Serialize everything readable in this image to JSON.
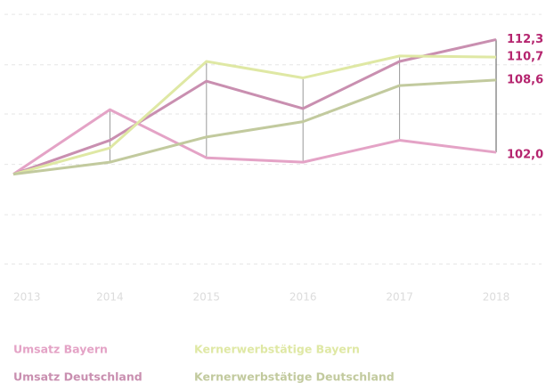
{
  "chart_data": {
    "type": "line",
    "categories": [
      "2013",
      "2014",
      "2015",
      "2016",
      "2017",
      "2018"
    ],
    "ylim": [
      90.7,
      115.1
    ],
    "yticks": [
      91.8,
      96.3,
      100.9,
      105.5,
      110,
      114.6
    ],
    "grid": true,
    "label_color": "#b5256f",
    "series": [
      {
        "name": "Umsatz Bayern",
        "color": "#e4a3c6",
        "values": [
          100,
          105.9,
          101.5,
          101.1,
          103.1,
          102.0
        ],
        "value_labels": [
          null,
          null,
          null,
          null,
          null,
          "102,0"
        ]
      },
      {
        "name": "Umsatz Deutschland",
        "color": "#c98fb0",
        "values": [
          100,
          103.1,
          108.5,
          106.0,
          110.3,
          112.3
        ],
        "value_labels": [
          null,
          null,
          null,
          null,
          null,
          "112,3"
        ]
      },
      {
        "name": "Kernerwerbstätige Bayern",
        "color": "#dfe8a4",
        "values": [
          100,
          102.4,
          110.3,
          108.8,
          110.8,
          110.7
        ],
        "value_labels": [
          null,
          null,
          null,
          null,
          null,
          "110,7"
        ]
      },
      {
        "name": "Kernerwerbstätige Deutschland",
        "color": "#c2ca9e",
        "values": [
          100,
          101.1,
          103.4,
          104.8,
          108.1,
          108.6
        ],
        "value_labels": [
          null,
          null,
          null,
          null,
          null,
          "108,6"
        ]
      }
    ]
  }
}
